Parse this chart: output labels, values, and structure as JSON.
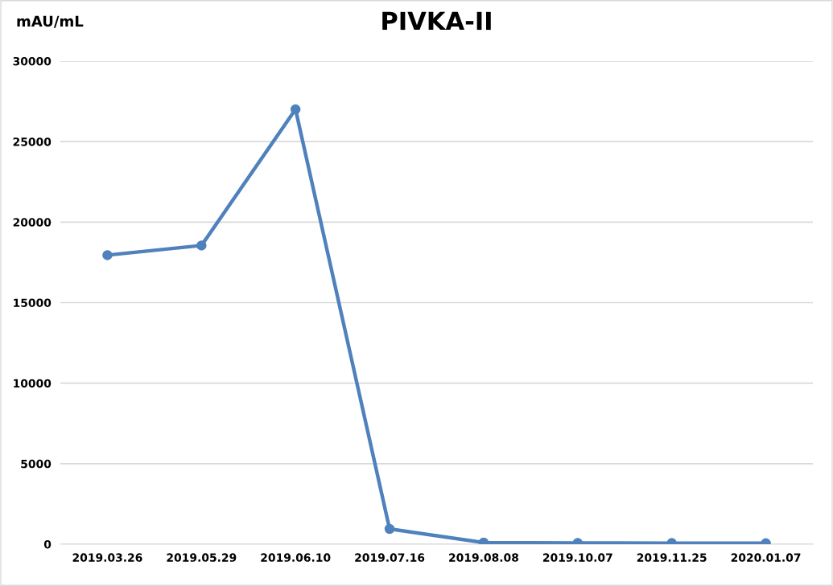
{
  "chart_data": {
    "type": "line",
    "title": "PIVKA-II",
    "ylabel": "mAU/mL",
    "categories": [
      "2019.03.26",
      "2019.05.29",
      "2019.06.10",
      "2019.07.16",
      "2019.08.08",
      "2019.10.07",
      "2019.11.25",
      "2020.01.07"
    ],
    "series": [
      {
        "color": "#4f81bd",
        "values": [
          17950,
          18550,
          27000,
          950,
          100,
          80,
          70,
          60
        ]
      }
    ],
    "ylim": [
      0,
      30000
    ],
    "yticks": [
      0,
      5000,
      10000,
      15000,
      20000,
      25000,
      30000
    ],
    "grid": "y",
    "marker": "circle",
    "line_style": "solid",
    "legend": false
  }
}
